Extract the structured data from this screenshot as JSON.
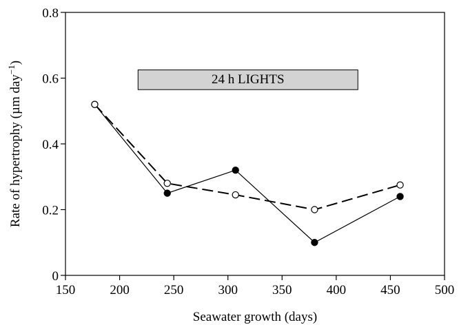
{
  "chart_data": {
    "type": "line",
    "xlabel": "Seawater growth (days)",
    "ylabel": "Rate of hypertrophy (µm day",
    "ylabel_sup": "−1",
    "ylabel_close": ")",
    "xlim": [
      150,
      500
    ],
    "ylim": [
      0,
      0.8
    ],
    "xticks": [
      150,
      200,
      250,
      300,
      350,
      400,
      450,
      500
    ],
    "yticks": [
      0,
      0.2,
      0.4,
      0.6,
      0.8
    ],
    "xtick_labels": [
      "150",
      "200",
      "250",
      "300",
      "350",
      "400",
      "450",
      "500"
    ],
    "ytick_labels": [
      "0",
      "0.2",
      "0.4",
      "0.6",
      "0.8"
    ],
    "annotation": {
      "text": "24 h LIGHTS",
      "x_range": [
        217,
        420
      ],
      "y_range": [
        0.565,
        0.625
      ]
    },
    "grid": false,
    "series": [
      {
        "marker": "filled-circle",
        "line": "solid",
        "x": [
          177,
          244,
          307,
          380,
          459
        ],
        "y": [
          0.52,
          0.25,
          0.32,
          0.1,
          0.24
        ]
      },
      {
        "marker": "open-circle",
        "line": "dashed",
        "x": [
          177,
          244,
          307,
          380,
          459
        ],
        "y": [
          0.52,
          0.28,
          0.245,
          0.2,
          0.275
        ]
      }
    ]
  }
}
